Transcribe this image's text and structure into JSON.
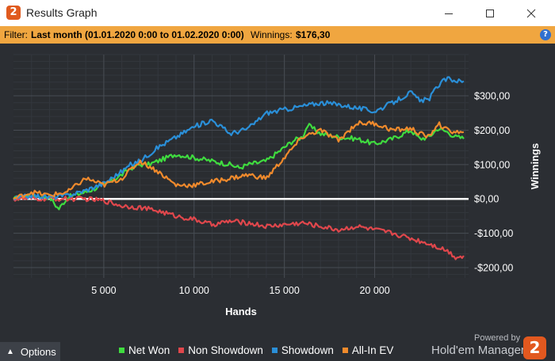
{
  "window": {
    "title": "Results Graph",
    "app_icon": "2"
  },
  "filter_bar": {
    "filter_label": "Filter:",
    "filter_value": "Last month (01.01.2020 0:00 to 01.02.2020 0:00)",
    "winnings_label": "Winnings:",
    "winnings_value": "$176,30",
    "help_icon": "?"
  },
  "options": {
    "label": "Options"
  },
  "branding": {
    "powered_by": "Powered by",
    "name": "Hold'em Manager",
    "logo": "2"
  },
  "chart_data": {
    "type": "line",
    "title": "",
    "xlabel": "Hands",
    "ylabel": "Winnings",
    "xlim": [
      0,
      25200
    ],
    "ylim": [
      -230,
      420
    ],
    "x_ticks": [
      5000,
      10000,
      15000,
      20000
    ],
    "x_tick_labels": [
      "5 000",
      "10 000",
      "15 000",
      "20 000"
    ],
    "y_ticks": [
      300,
      200,
      100,
      0,
      -100,
      -200
    ],
    "y_tick_labels": [
      "$300,00",
      "$200,00",
      "$100,00",
      "$0,00",
      "-$100,00",
      "-$200,00"
    ],
    "grid": true,
    "legend_position": "bottom",
    "series": [
      {
        "name": "Net Won",
        "color": "#3fdc3f",
        "x": [
          0,
          1000,
          2000,
          2500,
          3000,
          4000,
          5000,
          6000,
          6500,
          7000,
          7500,
          8000,
          9000,
          10000,
          11000,
          12000,
          12500,
          13000,
          14000,
          15000,
          15500,
          16000,
          16300,
          17000,
          18000,
          19000,
          20000,
          21000,
          22000,
          22500,
          23000,
          23500,
          24000,
          24500,
          25000
        ],
        "values": [
          0,
          10,
          5,
          -30,
          5,
          20,
          40,
          70,
          90,
          100,
          100,
          110,
          130,
          120,
          110,
          100,
          90,
          100,
          110,
          150,
          170,
          180,
          215,
          190,
          180,
          175,
          160,
          175,
          200,
          175,
          180,
          205,
          195,
          180,
          176
        ]
      },
      {
        "name": "Non Showdown",
        "color": "#e0474c",
        "x": [
          0,
          2000,
          4000,
          5000,
          6000,
          7000,
          8000,
          9000,
          10000,
          11000,
          12000,
          13000,
          14000,
          15000,
          16000,
          17000,
          18000,
          19000,
          20000,
          21000,
          22000,
          23000,
          24000,
          24500,
          25000
        ],
        "values": [
          0,
          0,
          0,
          -5,
          -20,
          -25,
          -35,
          -50,
          -60,
          -75,
          -65,
          -70,
          -80,
          -75,
          -70,
          -80,
          -90,
          -80,
          -90,
          -100,
          -115,
          -130,
          -150,
          -170,
          -165
        ]
      },
      {
        "name": "Showdown",
        "color": "#2a8fd8",
        "x": [
          0,
          1000,
          2000,
          3000,
          4000,
          5000,
          6000,
          6500,
          7000,
          8000,
          9000,
          10000,
          11000,
          12000,
          13000,
          14000,
          15000,
          16000,
          17000,
          18000,
          19000,
          20000,
          21000,
          22000,
          22500,
          23000,
          23500,
          24000,
          25000
        ],
        "values": [
          0,
          10,
          5,
          10,
          25,
          45,
          80,
          100,
          110,
          150,
          180,
          210,
          230,
          190,
          205,
          250,
          260,
          270,
          280,
          275,
          265,
          255,
          280,
          310,
          285,
          290,
          330,
          350,
          340
        ]
      },
      {
        "name": "All-In EV",
        "color": "#f08a2c",
        "x": [
          0,
          1000,
          2000,
          3000,
          4000,
          5000,
          6000,
          7000,
          8000,
          9000,
          10000,
          11000,
          12000,
          13000,
          14000,
          15000,
          15500,
          16000,
          17000,
          18000,
          19000,
          20000,
          21000,
          22000,
          22500,
          23000,
          23500,
          24000,
          25000
        ],
        "values": [
          0,
          20,
          10,
          20,
          60,
          40,
          60,
          110,
          80,
          40,
          40,
          50,
          60,
          70,
          60,
          120,
          150,
          180,
          200,
          170,
          220,
          220,
          200,
          205,
          190,
          180,
          220,
          200,
          190
        ]
      }
    ]
  }
}
